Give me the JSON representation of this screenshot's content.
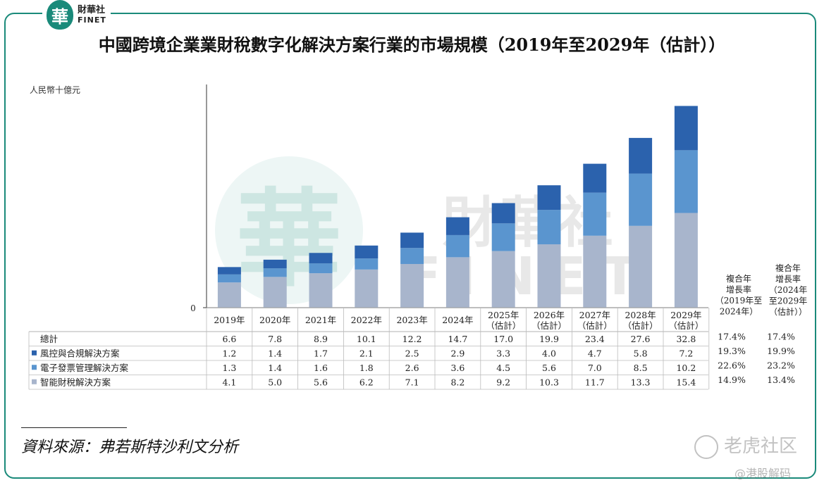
{
  "logo": {
    "seal": "華",
    "zh": "財華社",
    "en": "FINET"
  },
  "title": "中國跨境企業業財稅數字化解決方案行業的市場規模（2019年至2029年（估計））",
  "unit": "人民幣十億元",
  "colors": {
    "frame": "#1a8a7a",
    "risk": "#2b62ad",
    "einvoice": "#5a95cf",
    "smarttax": "#a8b5cc"
  },
  "watermark": {
    "seal": "華",
    "zh": "財華社",
    "en": "FINET"
  },
  "source": "資料來源：弗若斯特沙利文分析",
  "overlay": {
    "tiger": "老虎社区",
    "handle": "@港股解码"
  },
  "chart_data": {
    "type": "bar",
    "stacked": true,
    "categories": [
      "2019年",
      "2020年",
      "2021年",
      "2022年",
      "2023年",
      "2024年",
      "2025年（估計）",
      "2026年（估計）",
      "2027年（估計）",
      "2028年（估計）",
      "2029年（估計）"
    ],
    "category_lines": [
      [
        "2019年"
      ],
      [
        "2020年"
      ],
      [
        "2021年"
      ],
      [
        "2022年"
      ],
      [
        "2023年"
      ],
      [
        "2024年"
      ],
      [
        "2025年",
        "（估計）"
      ],
      [
        "2026年",
        "（估計）"
      ],
      [
        "2027年",
        "（估計）"
      ],
      [
        "2028年",
        "（估計）"
      ],
      [
        "2029年",
        "（估計）"
      ]
    ],
    "y_zero_label": "0",
    "ylim": [
      0,
      34
    ],
    "total": {
      "name": "總計",
      "values": [
        "6.6",
        "7.8",
        "8.9",
        "10.1",
        "12.2",
        "14.7",
        "17.0",
        "19.9",
        "23.4",
        "27.6",
        "32.8"
      ]
    },
    "series": [
      {
        "name": "風控與合規解決方案",
        "key": "risk",
        "values": [
          1.2,
          1.4,
          1.7,
          2.1,
          2.5,
          2.9,
          3.3,
          4.0,
          4.7,
          5.8,
          7.2
        ],
        "labels": [
          "1.2",
          "1.4",
          "1.7",
          "2.1",
          "2.5",
          "2.9",
          "3.3",
          "4.0",
          "4.7",
          "5.8",
          "7.2"
        ]
      },
      {
        "name": "電子發票管理解決方案",
        "key": "einvoice",
        "values": [
          1.3,
          1.4,
          1.6,
          1.8,
          2.6,
          3.6,
          4.5,
          5.6,
          7.0,
          8.5,
          10.2
        ],
        "labels": [
          "1.3",
          "1.4",
          "1.6",
          "1.8",
          "2.6",
          "3.6",
          "4.5",
          "5.6",
          "7.0",
          "8.5",
          "10.2"
        ]
      },
      {
        "name": "智能財稅解決方案",
        "key": "smarttax",
        "values": [
          4.1,
          5.0,
          5.6,
          6.2,
          7.1,
          8.2,
          9.2,
          10.3,
          11.7,
          13.3,
          15.4
        ],
        "labels": [
          "4.1",
          "5.0",
          "5.6",
          "6.2",
          "7.1",
          "8.2",
          "9.2",
          "10.3",
          "11.7",
          "13.3",
          "15.4"
        ]
      }
    ],
    "cagr": {
      "headers": [
        {
          "lines": [
            "複合年",
            "增長率",
            "（2019年至",
            "2024年）"
          ]
        },
        {
          "lines": [
            "複合年",
            "增長率",
            "（2024年",
            "至2029年",
            "（估計））"
          ]
        }
      ],
      "rows": [
        [
          "17.4%",
          "17.4%"
        ],
        [
          "19.3%",
          "19.9%"
        ],
        [
          "22.6%",
          "23.2%"
        ],
        [
          "14.9%",
          "13.4%"
        ]
      ]
    }
  }
}
